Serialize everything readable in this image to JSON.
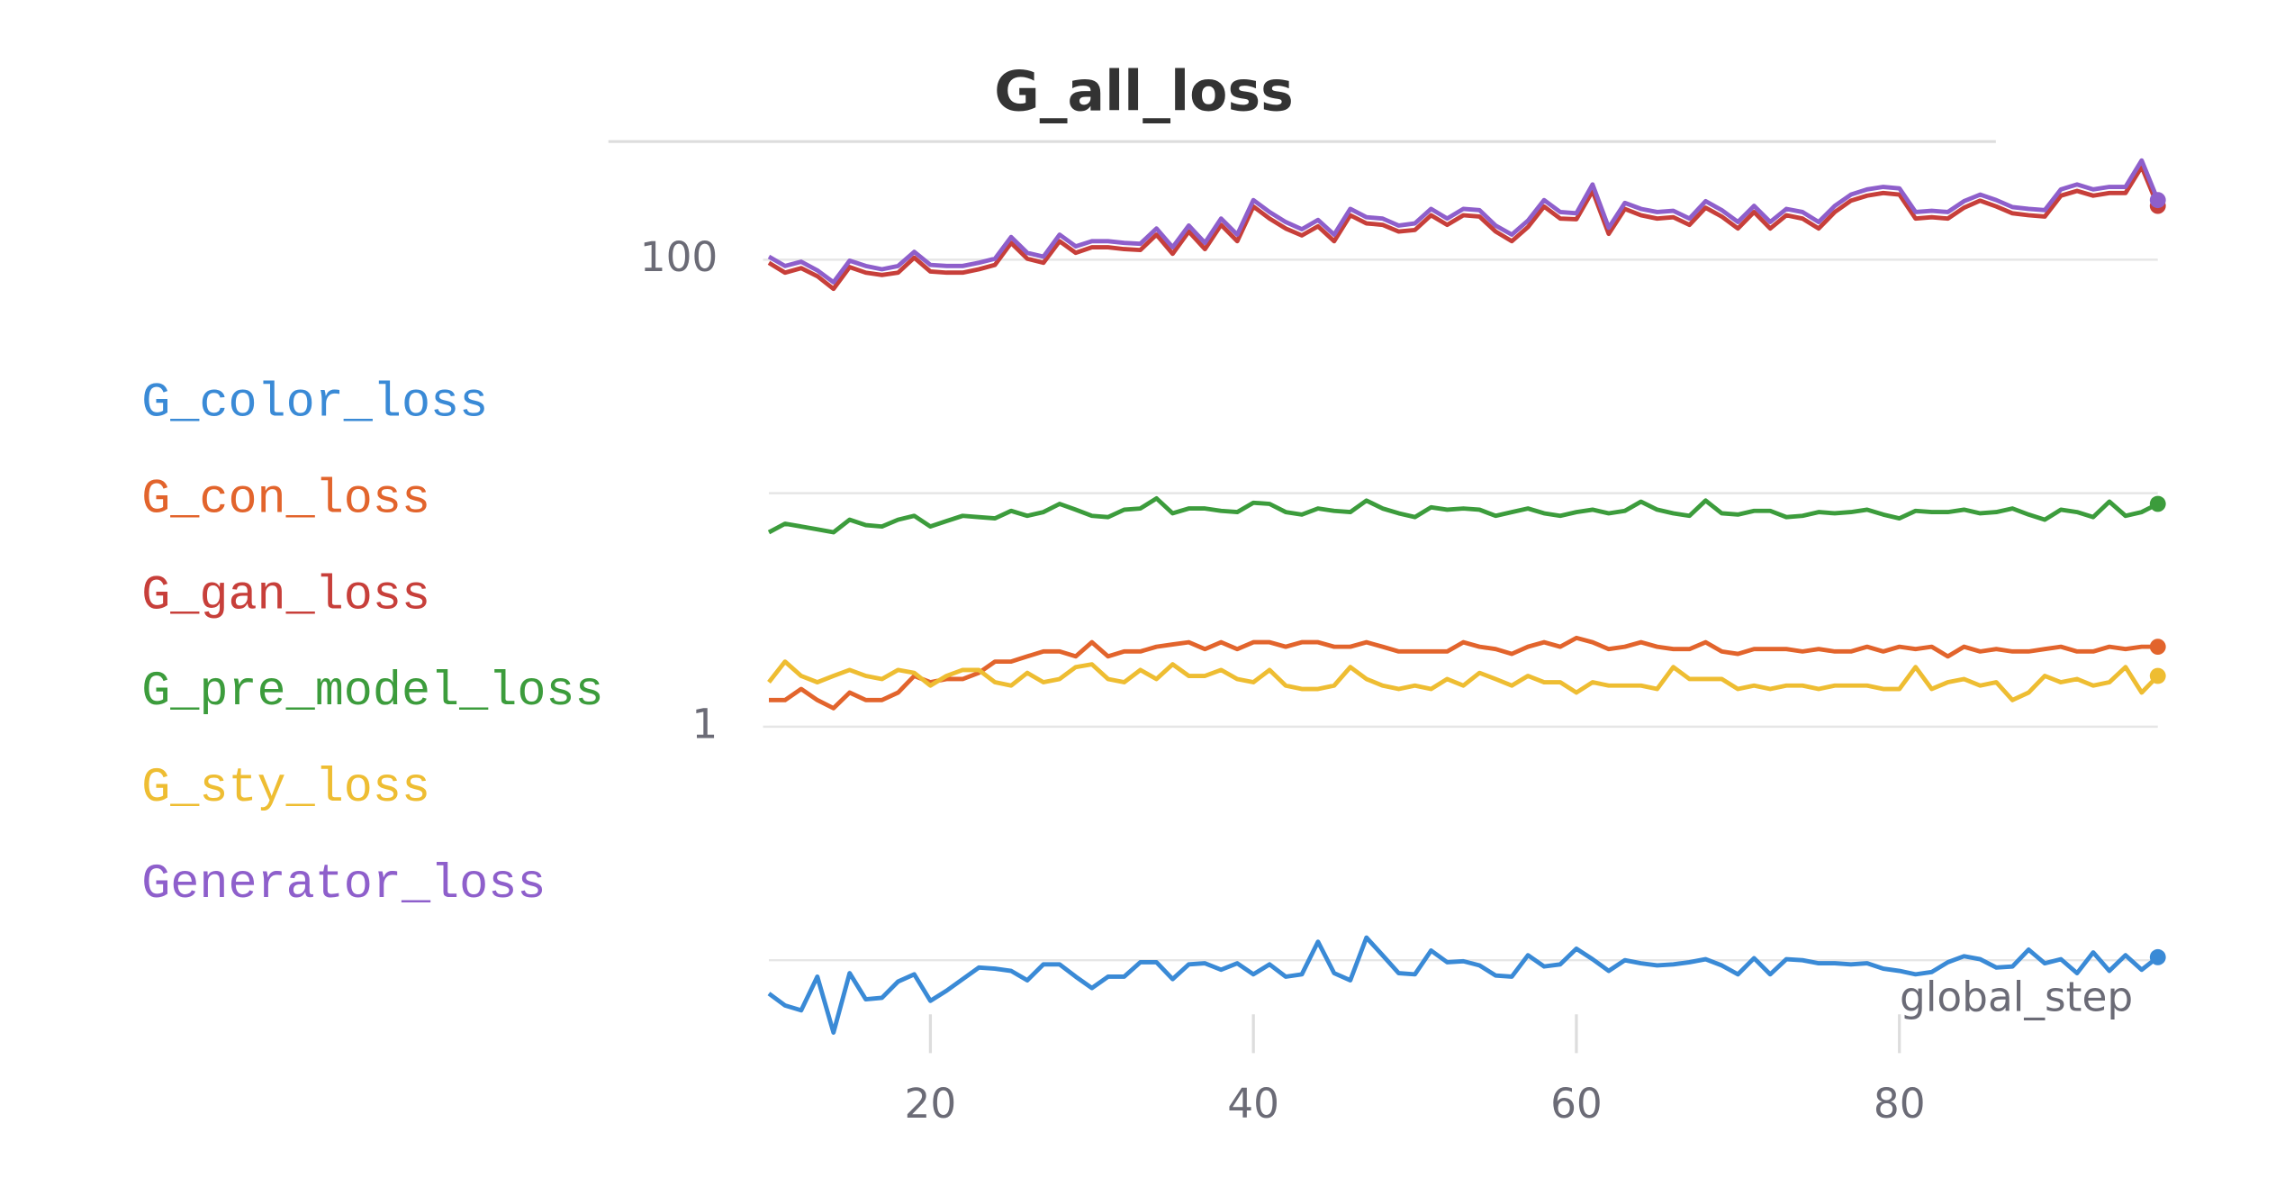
{
  "chart_data": {
    "type": "line",
    "title": "G_all_loss",
    "x_label": "global_step",
    "log_y": true,
    "grid": "decades",
    "legend": "left",
    "xlim": [
      10,
      96
    ],
    "xticks": [
      20,
      40,
      60,
      80
    ],
    "ylim": [
      0.04,
      300
    ],
    "yticks": [
      1,
      100
    ],
    "x": [
      10,
      11,
      12,
      13,
      14,
      15,
      16,
      17,
      18,
      19,
      20,
      21,
      22,
      23,
      24,
      25,
      26,
      27,
      28,
      29,
      30,
      31,
      32,
      33,
      34,
      35,
      36,
      37,
      38,
      39,
      40,
      41,
      42,
      43,
      44,
      45,
      46,
      47,
      48,
      49,
      50,
      51,
      52,
      53,
      54,
      55,
      56,
      57,
      58,
      59,
      60,
      61,
      62,
      63,
      64,
      65,
      66,
      67,
      68,
      69,
      70,
      71,
      72,
      73,
      74,
      75,
      76,
      77,
      78,
      79,
      80,
      81,
      82,
      83,
      84,
      85,
      86,
      87,
      88,
      89,
      90,
      91,
      92,
      93,
      94,
      95,
      96
    ],
    "series": [
      {
        "name": "G_color_loss",
        "color": "#3a8ad6",
        "values": [
          0.072,
          0.064,
          0.061,
          0.085,
          0.049,
          0.088,
          0.068,
          0.069,
          0.081,
          0.087,
          0.067,
          0.074,
          0.083,
          0.093,
          0.092,
          0.09,
          0.082,
          0.096,
          0.096,
          0.085,
          0.076,
          0.085,
          0.085,
          0.098,
          0.098,
          0.083,
          0.096,
          0.097,
          0.091,
          0.097,
          0.087,
          0.096,
          0.085,
          0.087,
          0.12,
          0.088,
          0.082,
          0.125,
          0.105,
          0.088,
          0.087,
          0.11,
          0.098,
          0.099,
          0.095,
          0.086,
          0.085,
          0.105,
          0.094,
          0.096,
          0.112,
          0.101,
          0.09,
          0.1,
          0.097,
          0.095,
          0.096,
          0.098,
          0.101,
          0.095,
          0.087,
          0.102,
          0.087,
          0.101,
          0.1,
          0.097,
          0.097,
          0.096,
          0.097,
          0.092,
          0.09,
          0.087,
          0.089,
          0.098,
          0.104,
          0.101,
          0.093,
          0.094,
          0.111,
          0.097,
          0.101,
          0.088,
          0.108,
          0.09,
          0.105,
          0.091,
          0.103
        ]
      },
      {
        "name": "G_con_loss",
        "color": "#e2642c",
        "values": [
          1.3,
          1.3,
          1.45,
          1.3,
          1.2,
          1.4,
          1.3,
          1.3,
          1.4,
          1.65,
          1.55,
          1.6,
          1.6,
          1.7,
          1.9,
          1.9,
          2.0,
          2.1,
          2.1,
          2.0,
          2.3,
          2.0,
          2.1,
          2.1,
          2.2,
          2.25,
          2.3,
          2.15,
          2.3,
          2.15,
          2.3,
          2.3,
          2.2,
          2.3,
          2.3,
          2.2,
          2.2,
          2.3,
          2.2,
          2.1,
          2.1,
          2.1,
          2.1,
          2.3,
          2.2,
          2.15,
          2.05,
          2.2,
          2.3,
          2.2,
          2.4,
          2.3,
          2.15,
          2.2,
          2.3,
          2.2,
          2.15,
          2.15,
          2.3,
          2.1,
          2.05,
          2.15,
          2.15,
          2.15,
          2.1,
          2.15,
          2.1,
          2.1,
          2.2,
          2.1,
          2.2,
          2.15,
          2.2,
          2.0,
          2.2,
          2.1,
          2.15,
          2.1,
          2.1,
          2.15,
          2.2,
          2.1,
          2.1,
          2.2,
          2.15,
          2.2,
          2.2
        ]
      },
      {
        "name": "G_gan_loss",
        "color": "#c73f3a",
        "values": [
          97,
          88,
          92,
          85,
          75,
          93,
          88,
          86,
          88,
          102,
          89,
          88,
          88,
          91,
          95,
          118,
          101,
          97,
          120,
          107,
          113,
          113,
          111,
          110,
          128,
          106,
          132,
          111,
          141,
          120,
          169,
          150,
          136,
          127,
          139,
          120,
          155,
          143,
          141,
          132,
          134,
          155,
          141,
          155,
          153,
          132,
          120,
          138,
          169,
          150,
          149,
          197,
          129,
          165,
          155,
          150,
          152,
          141,
          167,
          153,
          136,
          160,
          136,
          155,
          150,
          136,
          160,
          179,
          188,
          193,
          190,
          150,
          152,
          150,
          167,
          179,
          169,
          158,
          155,
          153,
          188,
          197,
          188,
          193,
          193,
          250,
          170
        ]
      },
      {
        "name": "G_pre_model_loss",
        "color": "#3c9c3c",
        "values": [
          6.8,
          7.4,
          7.2,
          7.0,
          6.8,
          7.7,
          7.3,
          7.2,
          7.7,
          8.0,
          7.2,
          7.6,
          8.0,
          7.9,
          7.8,
          8.4,
          8.0,
          8.3,
          9.0,
          8.5,
          8.0,
          7.9,
          8.5,
          8.6,
          9.5,
          8.2,
          8.6,
          8.6,
          8.4,
          8.3,
          9.1,
          9.0,
          8.3,
          8.1,
          8.6,
          8.4,
          8.3,
          9.3,
          8.6,
          8.2,
          7.9,
          8.7,
          8.5,
          8.6,
          8.5,
          8.0,
          8.3,
          8.6,
          8.2,
          8.0,
          8.3,
          8.5,
          8.2,
          8.4,
          9.2,
          8.5,
          8.2,
          8.0,
          9.3,
          8.2,
          8.1,
          8.4,
          8.4,
          7.9,
          8.0,
          8.3,
          8.2,
          8.3,
          8.5,
          8.1,
          7.8,
          8.4,
          8.3,
          8.3,
          8.5,
          8.2,
          8.3,
          8.6,
          8.1,
          7.7,
          8.5,
          8.3,
          7.9,
          9.2,
          8.0,
          8.3,
          9.0
        ]
      },
      {
        "name": "G_sty_loss",
        "color": "#eebd32",
        "values": [
          1.55,
          1.9,
          1.65,
          1.55,
          1.65,
          1.75,
          1.65,
          1.6,
          1.75,
          1.7,
          1.5,
          1.65,
          1.75,
          1.75,
          1.55,
          1.5,
          1.7,
          1.55,
          1.6,
          1.8,
          1.85,
          1.6,
          1.55,
          1.75,
          1.6,
          1.85,
          1.65,
          1.65,
          1.75,
          1.6,
          1.55,
          1.75,
          1.5,
          1.45,
          1.45,
          1.5,
          1.8,
          1.6,
          1.5,
          1.45,
          1.5,
          1.45,
          1.6,
          1.5,
          1.7,
          1.6,
          1.5,
          1.65,
          1.55,
          1.55,
          1.4,
          1.55,
          1.5,
          1.5,
          1.5,
          1.45,
          1.8,
          1.6,
          1.6,
          1.6,
          1.45,
          1.5,
          1.45,
          1.5,
          1.5,
          1.45,
          1.5,
          1.5,
          1.5,
          1.45,
          1.45,
          1.8,
          1.45,
          1.55,
          1.6,
          1.5,
          1.55,
          1.3,
          1.4,
          1.65,
          1.55,
          1.6,
          1.5,
          1.55,
          1.8,
          1.4,
          1.65
        ]
      },
      {
        "name": "Generator_loss",
        "color": "#8e5fcb",
        "values": [
          103,
          94,
          98,
          90,
          80,
          99,
          94,
          91,
          94,
          108,
          95,
          94,
          94,
          97,
          101,
          125,
          107,
          103,
          128,
          114,
          120,
          120,
          118,
          117,
          136,
          113,
          140,
          118,
          150,
          128,
          180,
          160,
          145,
          135,
          148,
          128,
          165,
          152,
          150,
          140,
          143,
          165,
          150,
          165,
          163,
          140,
          128,
          147,
          180,
          160,
          158,
          210,
          137,
          175,
          165,
          160,
          162,
          150,
          178,
          163,
          145,
          170,
          145,
          165,
          160,
          145,
          170,
          190,
          200,
          205,
          202,
          160,
          162,
          160,
          178,
          190,
          180,
          168,
          165,
          163,
          200,
          210,
          200,
          205,
          205,
          266,
          180
        ]
      }
    ]
  }
}
